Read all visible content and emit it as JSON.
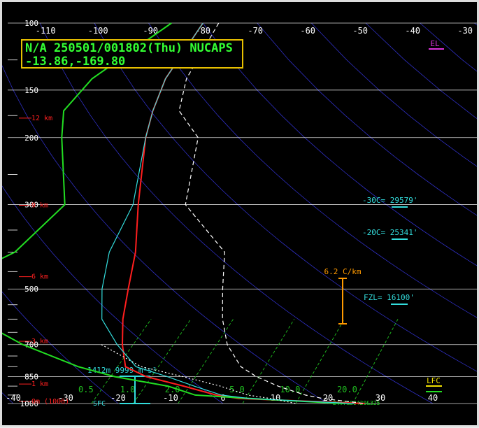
{
  "header": {
    "line1": "N/A 250501/001802(Thu) NUCAPS",
    "line2": "-13.86,-169.80"
  },
  "colors": {
    "temperature": "#ff1e1e",
    "dewpoint": "#22dd22",
    "parcel": "#ffffff",
    "wetbulb": "#33dddd",
    "isotherm": "#3a3af0",
    "mixing_ratio": "#20c020",
    "isobar": "#ffffff",
    "height": "#ff2020",
    "lapse": "#ff9a00"
  },
  "chart_data": {
    "type": "line",
    "title": "",
    "xlabel": "",
    "ylabel": "",
    "pressure_ticks": [
      "100",
      "150",
      "200",
      "300",
      "500",
      "700",
      "850",
      "1000"
    ],
    "top_temp_ticks": [
      "-110",
      "-100",
      "-90",
      "-80",
      "-70",
      "-60",
      "-50",
      "-40",
      "-30"
    ],
    "bottom_temp_ticks": [
      "-40",
      "-30",
      "-20",
      "-10",
      "0",
      "10",
      "20",
      "30",
      "40"
    ],
    "mixing_ratio_labels": [
      "0.5",
      "1.0",
      "2.0",
      "5.0",
      "10.0",
      "20.0"
    ],
    "height_labels": [
      {
        "text": "12 km",
        "p": 180
      },
      {
        "text": "9 km",
        "p": 305
      },
      {
        "text": "6 km",
        "p": 470
      },
      {
        "text": "3 km",
        "p": 695
      },
      {
        "text": "1 km",
        "p": 900
      },
      {
        "text": "0m (1006)",
        "p": 1000
      }
    ],
    "level_labels": [
      {
        "text": "EL",
        "color": "#dd33dd"
      },
      {
        "text": "-30C= 29579'",
        "color": "#33dddd"
      },
      {
        "text": "-20C= 25341'",
        "color": "#33dddd"
      },
      {
        "text": "FZL= 16100'",
        "color": "#33dddd"
      },
      {
        "text": "LFC",
        "color": "#f0e000"
      }
    ],
    "lapse_rate": "6.2 C/km",
    "sfc_label": "SFC",
    "helicity": "1412m 9999 m²s²",
    "surface_readout": "24.7&80420&325",
    "series": [
      {
        "color": "#ff1e1e",
        "points": [
          [
            -80,
            100
          ],
          [
            -76,
            140
          ],
          [
            -72,
            170
          ],
          [
            -68,
            200
          ],
          [
            -56,
            300
          ],
          [
            -47,
            400
          ],
          [
            -41,
            500
          ],
          [
            -36,
            600
          ],
          [
            -31,
            700
          ],
          [
            -26,
            800
          ],
          [
            -20,
            850
          ],
          [
            -11,
            900
          ],
          [
            -3,
            950
          ],
          [
            2,
            970
          ],
          [
            27,
            1000
          ]
        ]
      },
      {
        "color": "#22dd22",
        "points": [
          [
            -86,
            100
          ],
          [
            -90,
            140
          ],
          [
            -89,
            170
          ],
          [
            -84,
            200
          ],
          [
            -70,
            300
          ],
          [
            -70,
            400
          ],
          [
            -77,
            500
          ],
          [
            -64,
            600
          ],
          [
            -50,
            700
          ],
          [
            -35,
            800
          ],
          [
            -26,
            850
          ],
          [
            -14,
            900
          ],
          [
            -7,
            950
          ],
          [
            4,
            970
          ],
          [
            23,
            1000
          ]
        ]
      },
      {
        "color": "#33dddd",
        "points": [
          [
            -80,
            100
          ],
          [
            -76,
            140
          ],
          [
            -72,
            170
          ],
          [
            -68,
            200
          ],
          [
            -57,
            300
          ],
          [
            -52,
            400
          ],
          [
            -46,
            500
          ],
          [
            -40,
            600
          ],
          [
            -32,
            700
          ],
          [
            -24,
            800
          ],
          [
            -16,
            850
          ],
          [
            -9,
            900
          ],
          [
            -2,
            950
          ],
          [
            4,
            970
          ],
          [
            25,
            1000
          ]
        ]
      },
      {
        "color": "#ffffff",
        "dash": "6,4",
        "points": [
          [
            -77,
            100
          ],
          [
            -72,
            140
          ],
          [
            -67,
            170
          ],
          [
            -58,
            200
          ],
          [
            -47,
            300
          ],
          [
            -30,
            400
          ],
          [
            -23,
            500
          ],
          [
            -17,
            600
          ],
          [
            -11,
            700
          ],
          [
            -4,
            800
          ],
          [
            1,
            850
          ],
          [
            7,
            900
          ],
          [
            14,
            950
          ],
          [
            18,
            970
          ],
          [
            27,
            1000
          ]
        ]
      },
      {
        "color": "#ffffff",
        "dash": "2,3",
        "points": [
          [
            -35,
            700
          ],
          [
            -23,
            800
          ],
          [
            -13,
            850
          ],
          [
            -4,
            900
          ],
          [
            3,
            950
          ],
          [
            8,
            970
          ],
          [
            14,
            1000
          ]
        ]
      }
    ]
  }
}
